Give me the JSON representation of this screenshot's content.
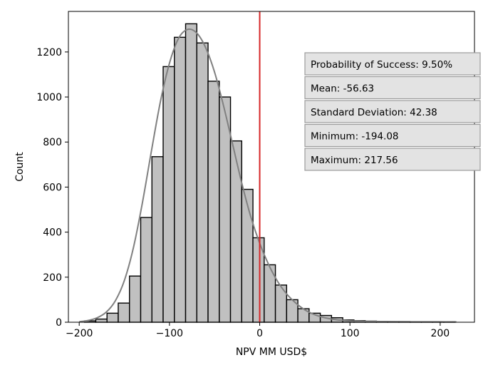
{
  "chart_data": {
    "type": "bar",
    "subtype": "histogram",
    "xlabel": "NPV MM USD$",
    "ylabel": "Count",
    "xlim": [
      -212,
      238
    ],
    "ylim": [
      0,
      1380
    ],
    "x_ticks": [
      -200,
      -100,
      0,
      100,
      200
    ],
    "x_tick_labels": [
      "−200",
      "−100",
      "0",
      "100",
      "200"
    ],
    "y_ticks": [
      0,
      200,
      400,
      600,
      800,
      1000,
      1200
    ],
    "y_tick_labels": [
      "0",
      "200",
      "400",
      "600",
      "800",
      "1000",
      "1200"
    ],
    "grid": false,
    "bin_width": 12.44,
    "bins": [
      {
        "x0": -194.08,
        "count": 6
      },
      {
        "x0": -181.64,
        "count": 14
      },
      {
        "x0": -169.2,
        "count": 40
      },
      {
        "x0": -156.76,
        "count": 85
      },
      {
        "x0": -144.32,
        "count": 205
      },
      {
        "x0": -131.88,
        "count": 465
      },
      {
        "x0": -119.44,
        "count": 735
      },
      {
        "x0": -107.0,
        "count": 1135
      },
      {
        "x0": -94.56,
        "count": 1265
      },
      {
        "x0": -82.12,
        "count": 1325
      },
      {
        "x0": -69.68,
        "count": 1240
      },
      {
        "x0": -57.24,
        "count": 1070
      },
      {
        "x0": -44.8,
        "count": 1000
      },
      {
        "x0": -32.36,
        "count": 805
      },
      {
        "x0": -19.92,
        "count": 590
      },
      {
        "x0": -7.48,
        "count": 375
      },
      {
        "x0": 4.96,
        "count": 255
      },
      {
        "x0": 17.4,
        "count": 165
      },
      {
        "x0": 29.84,
        "count": 100
      },
      {
        "x0": 42.28,
        "count": 60
      },
      {
        "x0": 54.72,
        "count": 40
      },
      {
        "x0": 67.16,
        "count": 30
      },
      {
        "x0": 79.6,
        "count": 20
      },
      {
        "x0": 92.04,
        "count": 10
      },
      {
        "x0": 104.48,
        "count": 7
      },
      {
        "x0": 116.92,
        "count": 5
      },
      {
        "x0": 129.36,
        "count": 4
      },
      {
        "x0": 141.8,
        "count": 3
      },
      {
        "x0": 154.24,
        "count": 3
      },
      {
        "x0": 166.68,
        "count": 2
      },
      {
        "x0": 179.12,
        "count": 2
      },
      {
        "x0": 191.56,
        "count": 2
      },
      {
        "x0": 204.0,
        "count": 2
      }
    ],
    "kde": [
      [
        -200,
        2
      ],
      [
        -190,
        8
      ],
      [
        -180,
        20
      ],
      [
        -170,
        45
      ],
      [
        -160,
        95
      ],
      [
        -150,
        185
      ],
      [
        -140,
        330
      ],
      [
        -130,
        530
      ],
      [
        -120,
        760
      ],
      [
        -110,
        980
      ],
      [
        -100,
        1150
      ],
      [
        -90,
        1260
      ],
      [
        -80,
        1300
      ],
      [
        -70,
        1285
      ],
      [
        -60,
        1220
      ],
      [
        -50,
        1110
      ],
      [
        -40,
        960
      ],
      [
        -30,
        790
      ],
      [
        -20,
        620
      ],
      [
        -10,
        470
      ],
      [
        0,
        350
      ],
      [
        10,
        255
      ],
      [
        20,
        180
      ],
      [
        30,
        125
      ],
      [
        40,
        85
      ],
      [
        50,
        55
      ],
      [
        60,
        35
      ],
      [
        70,
        22
      ],
      [
        80,
        14
      ],
      [
        90,
        9
      ],
      [
        100,
        6
      ],
      [
        120,
        4
      ],
      [
        140,
        3
      ],
      [
        160,
        2
      ],
      [
        180,
        2
      ],
      [
        200,
        2
      ],
      [
        218,
        1
      ]
    ],
    "vline": {
      "x": 0,
      "color": "#d62728"
    },
    "colors": {
      "bar_fill": "#c0c0c0",
      "bar_edge": "#000000",
      "kde": "#808080",
      "annotation_fill": "#e3e3e3",
      "annotation_edge": "#9b9b9b"
    },
    "annotations": [
      "Probability of Success: 9.50%",
      "Mean: -56.63",
      "Standard Deviation: 42.38",
      "Minimum: -194.08",
      "Maximum: 217.56"
    ]
  }
}
